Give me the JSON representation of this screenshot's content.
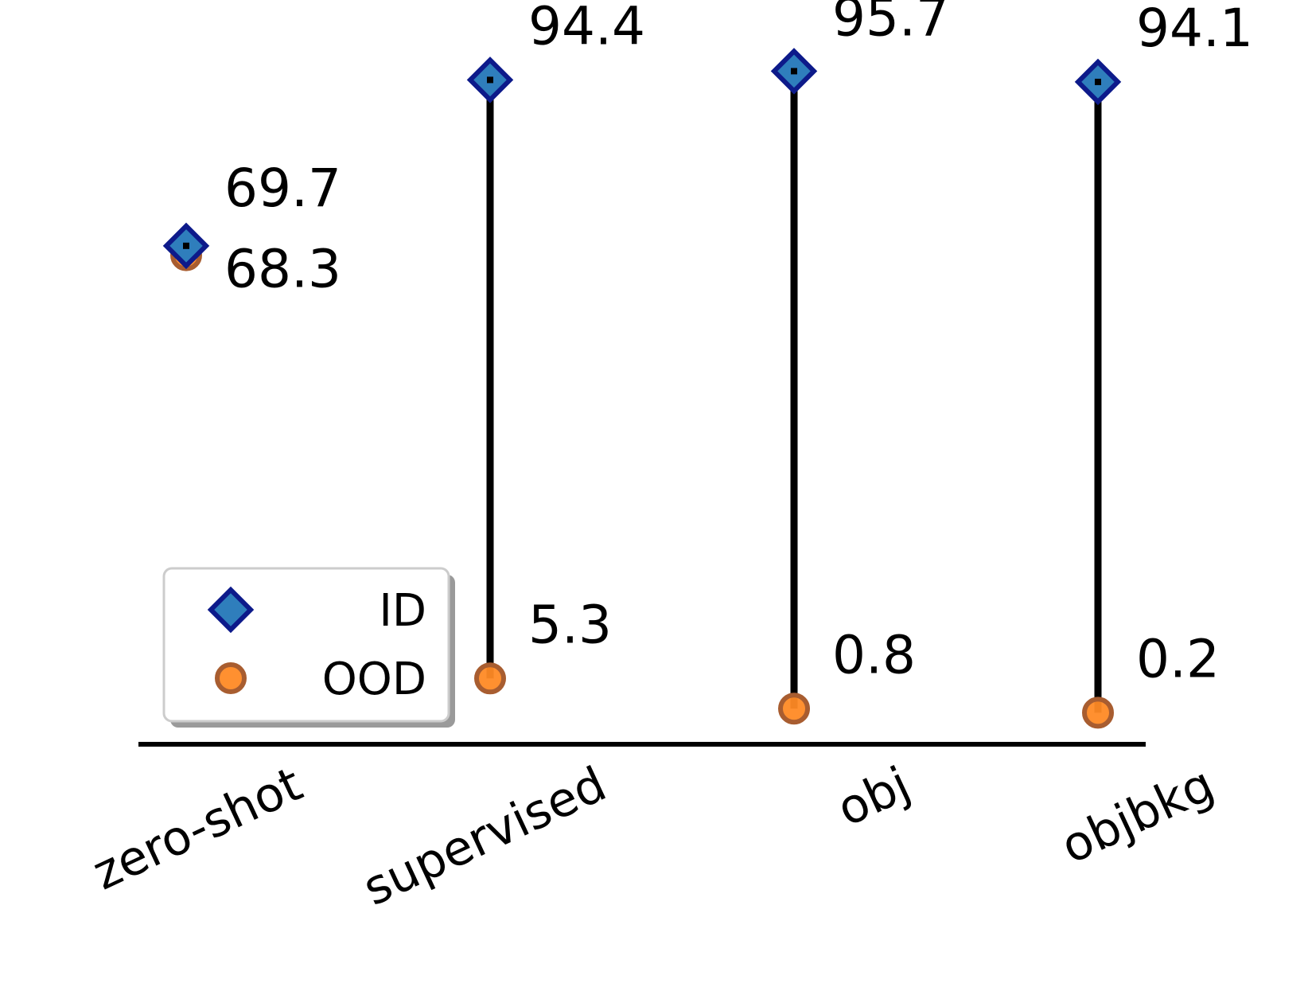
{
  "chart_data": {
    "type": "scatter",
    "categories": [
      "zero-shot",
      "supervised",
      "obj",
      "objbkg"
    ],
    "series": [
      {
        "name": "ID",
        "values": [
          69.7,
          94.4,
          95.7,
          94.1
        ],
        "marker": "diamond",
        "color": "#2f7ebc",
        "edge_color": "#0d1a8a"
      },
      {
        "name": "OOD",
        "values": [
          68.3,
          5.3,
          0.8,
          0.2
        ],
        "marker": "circle",
        "color": "#ff8a25",
        "edge_color": "#a85d30"
      }
    ],
    "connector_color": "#000000",
    "title": "",
    "xlabel": "",
    "ylabel": "",
    "ylim": [
      -4.5,
      98
    ],
    "grid": false,
    "legend_position": "lower-left"
  }
}
